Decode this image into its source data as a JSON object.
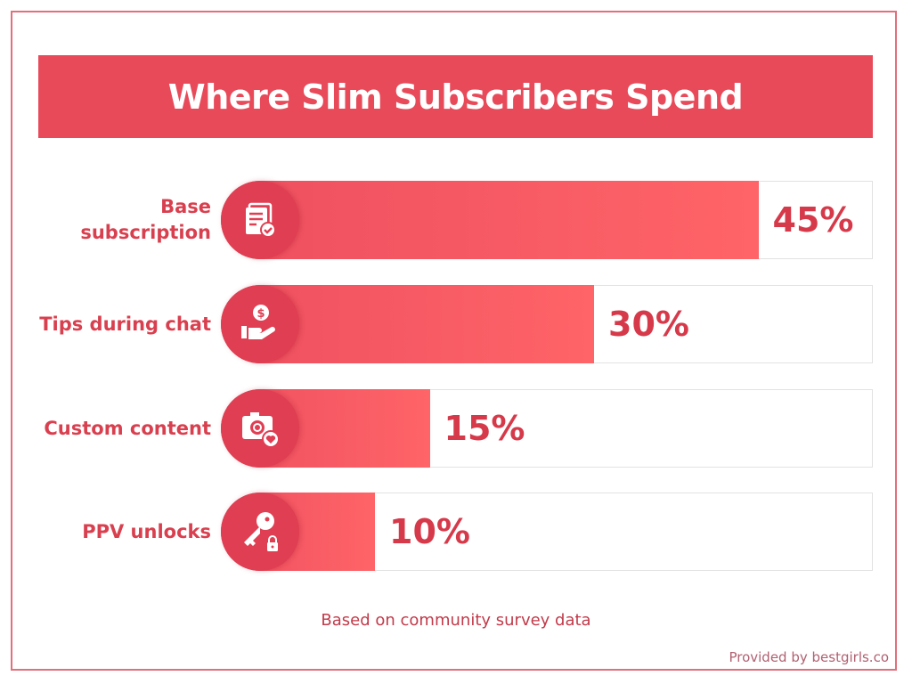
{
  "chart_data": {
    "type": "bar",
    "orientation": "horizontal",
    "title": "Where Slim Subscribers Spend",
    "categories": [
      "Base subscription",
      "Tips during chat",
      "Custom content",
      "PPV unlocks"
    ],
    "values": [
      45,
      30,
      15,
      10
    ],
    "value_labels": [
      "45%",
      "30%",
      "15%",
      "10%"
    ],
    "icons": [
      "document-check-icon",
      "hand-coin-icon",
      "camera-heart-icon",
      "key-lock-icon"
    ],
    "unit": "%",
    "xlim": [
      0,
      60
    ],
    "grid": false,
    "note": "Based on community survey data",
    "colors": {
      "title_bg": "#e84a5a",
      "bar": "#ff6468",
      "icon_circle": "#e03e52",
      "text": "#d63a4a"
    }
  },
  "footer": {
    "credit": "Provided by bestgirls.co"
  }
}
